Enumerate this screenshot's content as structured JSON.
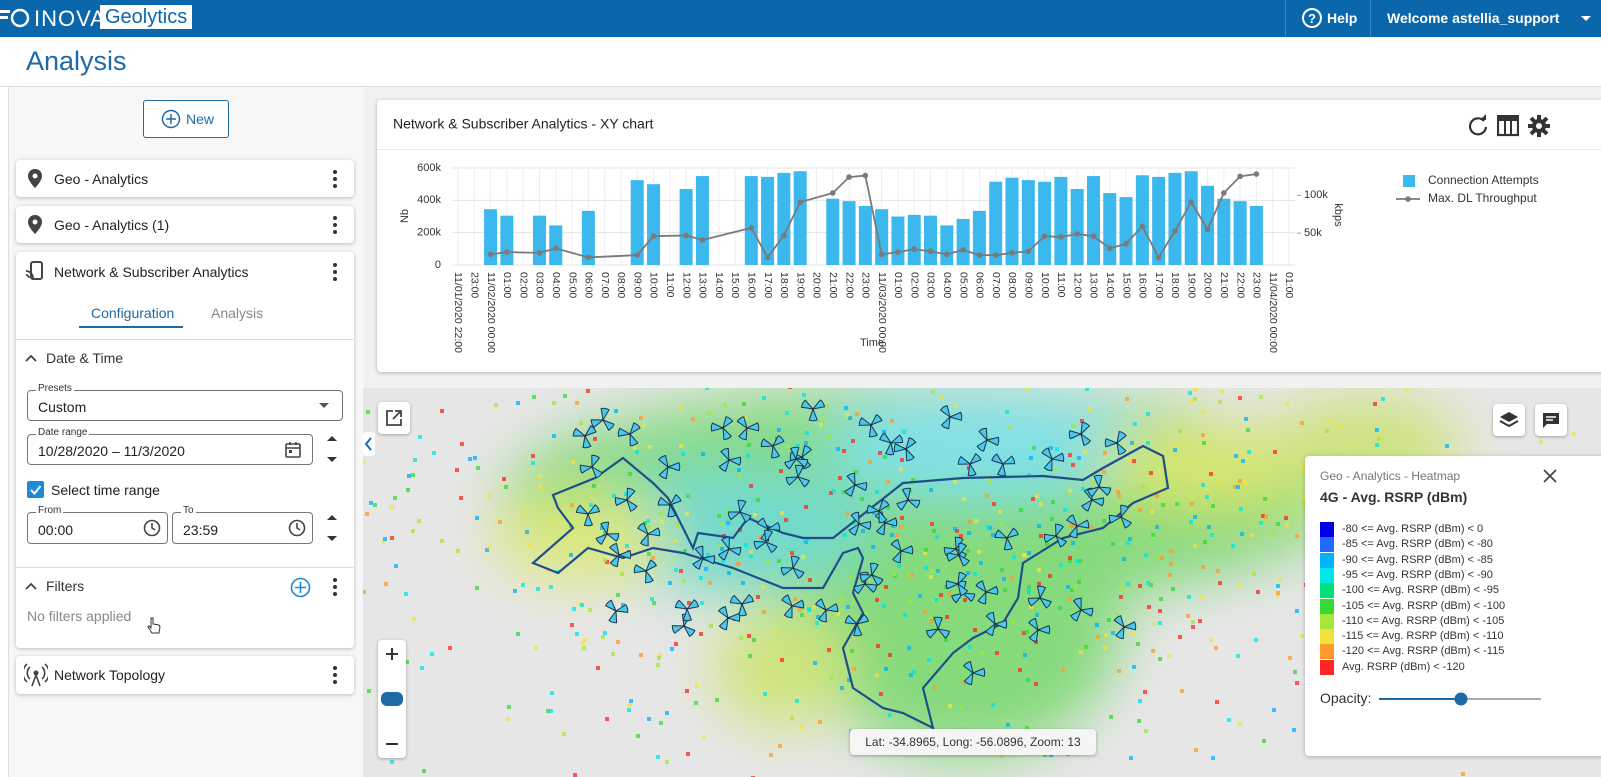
{
  "header": {
    "logo_left": "INOVA",
    "logo_right": "Geolytics",
    "help": "Help",
    "welcome": "Welcome astellia_support"
  },
  "page_title": "Analysis",
  "sidebar": {
    "new_button": "New",
    "panels": [
      "Geo - Analytics",
      "Geo - Analytics (1)",
      "Network & Subscriber Analytics"
    ],
    "tabs": [
      "Configuration",
      "Analysis"
    ],
    "date_time": "Date & Time",
    "presets_label": "Presets",
    "presets_value": "Custom",
    "date_range_label": "Date range",
    "date_range_value": "10/28/2020 – 11/3/2020",
    "select_time_range": "Select time range",
    "from_label": "From",
    "from_value": "00:00",
    "to_label": "To",
    "to_value": "23:59",
    "filters": "Filters",
    "no_filters": "No filters applied",
    "network_topology": "Network Topology"
  },
  "chart_data": {
    "type": "bar",
    "title": "Network & Subscriber Analytics - XY chart",
    "x_label": "Time",
    "y_label": "Nb",
    "y2_label": "kbps",
    "categories": [
      "11/01/2020 22:00",
      "23:00",
      "11/02/2020 00:00",
      "01:00",
      "02:00",
      "03:00",
      "04:00",
      "05:00",
      "06:00",
      "07:00",
      "08:00",
      "09:00",
      "10:00",
      "11:00",
      "12:00",
      "13:00",
      "14:00",
      "15:00",
      "16:00",
      "17:00",
      "18:00",
      "19:00",
      "20:00",
      "21:00",
      "22:00",
      "23:00",
      "11/03/2020 00:00",
      "01:00",
      "02:00",
      "03:00",
      "04:00",
      "05:00",
      "06:00",
      "07:00",
      "08:00",
      "09:00",
      "10:00",
      "11:00",
      "12:00",
      "13:00",
      "14:00",
      "15:00",
      "16:00",
      "17:00",
      "18:00",
      "19:00",
      "20:00",
      "21:00",
      "22:00",
      "23:00",
      "11/04/2020 00:00",
      "01:00"
    ],
    "series": [
      {
        "name": "Connection Attempts",
        "type": "bar",
        "color": "#3bb8ee",
        "values": [
          null,
          null,
          345000,
          305000,
          null,
          305000,
          245000,
          null,
          335000,
          null,
          null,
          525000,
          500000,
          null,
          470000,
          550000,
          null,
          null,
          550000,
          545000,
          570000,
          580000,
          null,
          410000,
          395000,
          365000,
          345000,
          300000,
          310000,
          305000,
          245000,
          285000,
          335000,
          515000,
          540000,
          525000,
          515000,
          545000,
          470000,
          550000,
          445000,
          420000,
          555000,
          545000,
          570000,
          580000,
          490000,
          410000,
          395000,
          365000,
          null,
          null
        ]
      },
      {
        "name": "Max. DL Throughput",
        "type": "line",
        "color": "#7a7a7a",
        "axis": "y2",
        "values": [
          null,
          null,
          22000,
          25000,
          null,
          24000,
          30000,
          null,
          18000,
          null,
          null,
          21000,
          46000,
          null,
          47000,
          41000,
          null,
          null,
          57000,
          18000,
          47000,
          91000,
          null,
          103000,
          124000,
          126000,
          22000,
          25000,
          29000,
          26000,
          22000,
          28000,
          21000,
          21000,
          24000,
          26000,
          46000,
          45000,
          49000,
          46000,
          30000,
          36000,
          59000,
          18000,
          53000,
          91000,
          55000,
          103000,
          125000,
          128000,
          null,
          null
        ]
      }
    ],
    "ylim": [
      0,
      600000
    ],
    "yticks": [
      0,
      {
        "value": 200000,
        "label": "200k"
      },
      {
        "value": 400000,
        "label": "400k"
      },
      {
        "value": 600000,
        "label": "600k"
      }
    ],
    "y2lim": [
      8000,
      136000
    ],
    "y2ticks": [
      {
        "value": 50000,
        "label": "50k"
      },
      {
        "value": 100000,
        "label": "100k"
      }
    ],
    "grid": true,
    "legend": "top-right"
  },
  "map": {
    "coords": "Lat: -34.8965, Long: -56.0896, Zoom: 13",
    "legend": {
      "title": "Geo - Analytics - Heatmap",
      "subtitle": "4G - Avg. RSRP (dBm)",
      "opacity_label": "Opacity:",
      "items": [
        {
          "label": "-80 <= Avg. RSRP (dBm) < 0",
          "color": "#0000e6"
        },
        {
          "label": "-85 <= Avg. RSRP (dBm) < -80",
          "color": "#1e6cff"
        },
        {
          "label": "-90 <= Avg. RSRP (dBm) < -85",
          "color": "#00b2ff"
        },
        {
          "label": "-95 <= Avg. RSRP (dBm) < -90",
          "color": "#00e5e5"
        },
        {
          "label": "-100 <= Avg. RSRP (dBm) < -95",
          "color": "#00e07a"
        },
        {
          "label": "-105 <= Avg. RSRP (dBm) < -100",
          "color": "#36d936"
        },
        {
          "label": "-110 <= Avg. RSRP (dBm) < -105",
          "color": "#a6e63a"
        },
        {
          "label": "-115 <= Avg. RSRP (dBm) < -110",
          "color": "#f2e33c"
        },
        {
          "label": "-120 <= Avg. RSRP (dBm) < -115",
          "color": "#ff9a2a"
        },
        {
          "label": "Avg. RSRP (dBm) < -120",
          "color": "#ff2626"
        }
      ]
    }
  }
}
